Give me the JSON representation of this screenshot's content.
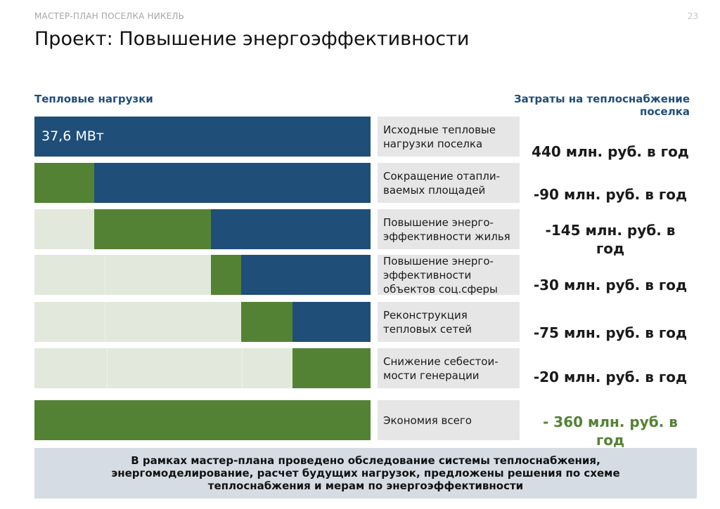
{
  "header": {
    "label": "МАСТЕР-ПЛАН ПОСЕЛКА НИКЕЛЬ",
    "page": "23"
  },
  "title": "Проект: Повышение энергоэффективности",
  "left_heading": "Тепловые нагрузки",
  "right_heading": "Затраты на теплоснабжение поселка",
  "rows": [
    {
      "bar_text": "37,6 МВт",
      "label": "Исходные тепловые нагрузки поселка",
      "value": "440 млн. руб. в год"
    },
    {
      "label": "Сокращение отапли-ваемых площадей",
      "value": "-90 млн. руб. в год"
    },
    {
      "label": "Повышение энерго-эффективности жилья",
      "value": "-145 млн. руб. в год"
    },
    {
      "label": "Повышение энерго-эффективности объектов соц.сферы",
      "value": "-30 млн. руб. в год"
    },
    {
      "label": "Реконструкция тепловых сетей",
      "value": "-75 млн. руб. в год"
    },
    {
      "label": "Снижение себестои-мости генерации",
      "value": "-20 млн. руб. в год"
    },
    {
      "label": "Экономия всего",
      "value": "- 360 млн. руб. в год"
    }
  ],
  "footer": "В рамках мастер-плана проведено обследование системы теплоснабжения, энергомоделирование, расчет будущих нагрузок, предложены решения по схеме теплоснабжения и мерам по энергоэффективности",
  "colors": {
    "blue": "#1f4e79",
    "green": "#548235",
    "light": "#e2e8dc",
    "label_bg": "#e6e6e6",
    "footer_bg": "#d6dce4"
  }
}
